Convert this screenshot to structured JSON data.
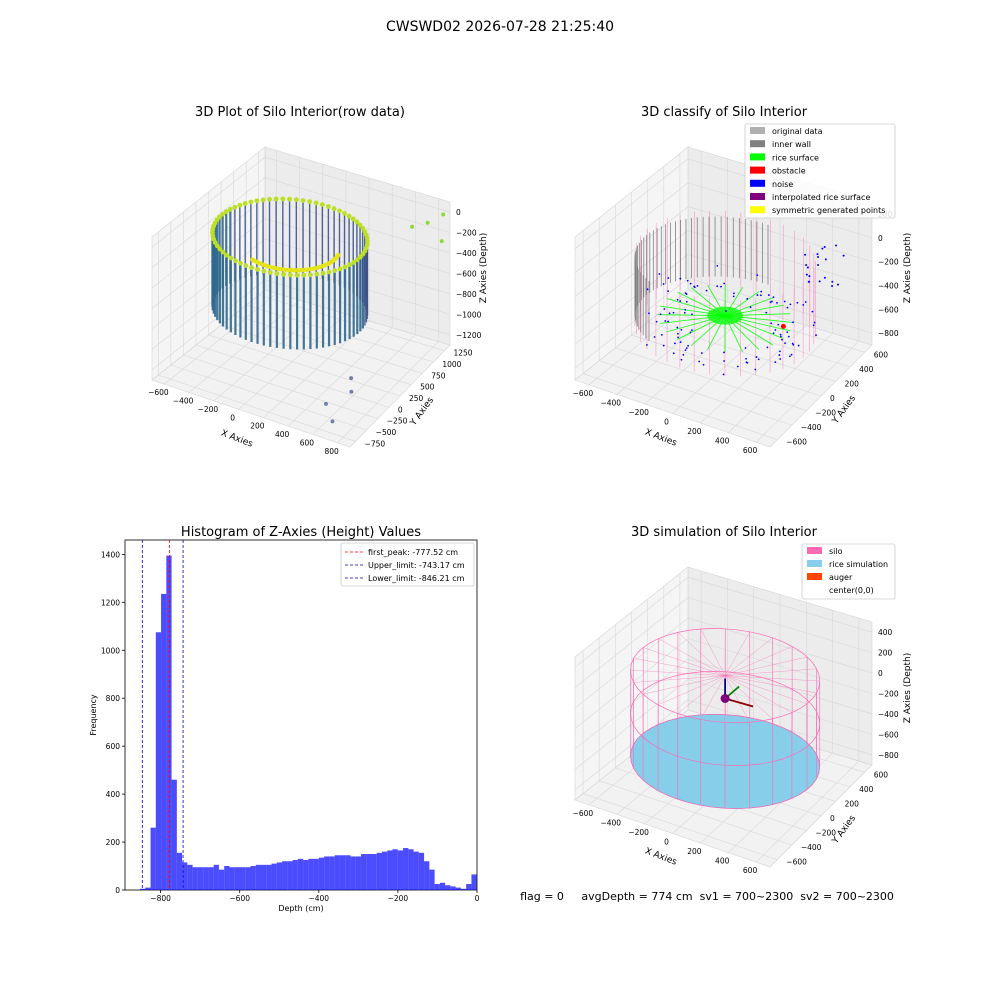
{
  "figure": {
    "suptitle": "CWSWD02 2026-07-28 21:25:40",
    "status_line": "flag = 0     avgDepth = 774 cm  sv1 = 700~2300  sv2 = 700~2300"
  },
  "colors": {
    "hist_bar": "#0000ff",
    "first_peak_line": "#ff0000",
    "limit_line": "#0000cc",
    "legend_original": "#b0b0b0",
    "legend_inner_wall": "#808080",
    "legend_rice_surface": "#00ff00",
    "legend_obstacle": "#ff0000",
    "legend_noise": "#0000ff",
    "legend_interpolated": "#800080",
    "legend_symmetric": "#ffff00",
    "silo": "#ff69b4",
    "rice_simulation": "#87ceeb",
    "auger": "#ff4500"
  },
  "chart_data": [
    {
      "type": "scatter",
      "projection": "3d",
      "title": "3D Plot of Silo Interior(row data)",
      "xlabel": "X Axies",
      "ylabel": "Y Axies",
      "zlabel": "Z Axies (Depth)",
      "xticks": [
        "−600",
        "−400",
        "−200",
        "0",
        "200",
        "400",
        "600",
        "800"
      ],
      "yticks": [
        "−750",
        "−500",
        "−250",
        "0",
        "250",
        "500",
        "750",
        "1000",
        "1250"
      ],
      "zticks": [
        "0",
        "−200",
        "−400",
        "−600",
        "−800",
        "−1000",
        "−1200"
      ],
      "colormap": "viridis"
    },
    {
      "type": "scatter",
      "projection": "3d",
      "title": "3D classify of Silo Interior",
      "xlabel": "X Axies",
      "ylabel": "Y Axies",
      "zlabel": "Z Axies (Depth)",
      "xticks": [
        "−600",
        "−400",
        "−200",
        "0",
        "200",
        "400",
        "600"
      ],
      "yticks": [
        "−600",
        "−400",
        "−200",
        "0",
        "200",
        "400",
        "600"
      ],
      "zticks": [
        "200",
        "0",
        "−200",
        "−400",
        "−600",
        "−800"
      ],
      "legend": [
        "original data",
        "inner wall",
        "rice surface",
        "obstacle",
        "noise",
        "interpolated rice surface",
        "symmetric generated points"
      ],
      "legend_loc": "upper right"
    },
    {
      "type": "bar",
      "title": "Histogram of Z-Axies (Height) Values",
      "xlabel": "Depth (cm)",
      "ylabel": "Frequency",
      "xlim": [
        -890,
        0
      ],
      "ylim": [
        0,
        1460
      ],
      "xticks": [
        "−800",
        "−600",
        "−400",
        "−200",
        "0"
      ],
      "yticks": [
        "0",
        "200",
        "400",
        "600",
        "800",
        "1000",
        "1200",
        "1400"
      ],
      "bin_width": 13.3,
      "bins_start": [
        -852,
        -838.7,
        -825.4,
        -812.1,
        -798.8,
        -785.5,
        -772.2,
        -758.9,
        -745.6,
        -732.3,
        -719,
        -705.7,
        -692.4,
        -679.1,
        -665.8,
        -652.5,
        -639.2,
        -625.9,
        -612.6,
        -599.3,
        -586,
        -572.7,
        -559.4,
        -546.1,
        -532.8,
        -519.5,
        -506.2,
        -492.9,
        -479.6,
        -466.3,
        -453,
        -439.7,
        -426.4,
        -413.1,
        -399.8,
        -386.5,
        -373.2,
        -359.9,
        -346.6,
        -333.3,
        -320,
        -306.7,
        -293.4,
        -280.1,
        -266.8,
        -253.5,
        -240.2,
        -226.9,
        -213.6,
        -200.3,
        -187,
        -173.7,
        -160.4,
        -147.1,
        -133.8,
        -120.5,
        -107.2,
        -93.9,
        -80.6,
        -67.3,
        -54,
        -40.7,
        -27.4,
        -14.1
      ],
      "values": [
        5,
        10,
        260,
        1075,
        1235,
        1395,
        460,
        155,
        115,
        105,
        95,
        95,
        95,
        95,
        105,
        85,
        100,
        95,
        95,
        95,
        95,
        100,
        105,
        105,
        105,
        110,
        115,
        120,
        120,
        125,
        130,
        125,
        130,
        130,
        135,
        140,
        140,
        145,
        145,
        145,
        140,
        140,
        150,
        150,
        150,
        155,
        160,
        165,
        170,
        165,
        175,
        170,
        160,
        155,
        120,
        85,
        25,
        30,
        20,
        15,
        10,
        5,
        25,
        65
      ],
      "vlines": [
        {
          "label": "first_peak: -777.52 cm",
          "x": -777.52,
          "style": "red-dashed"
        },
        {
          "label": "Upper_limit: -743.17 cm",
          "x": -743.17,
          "style": "blue-dashed"
        },
        {
          "label": "Lower_limit: -846.21 cm",
          "x": -846.21,
          "style": "blue-dashed"
        }
      ],
      "legend_loc": "upper right"
    },
    {
      "type": "scatter",
      "projection": "3d",
      "title": "3D simulation of Silo Interior",
      "xlabel": "X Axies",
      "ylabel": "Y Axies",
      "zlabel": "Z Axies (Depth)",
      "xticks": [
        "−600",
        "−400",
        "−200",
        "0",
        "200",
        "400",
        "600"
      ],
      "yticks": [
        "−600",
        "−400",
        "−200",
        "0",
        "200",
        "400",
        "600"
      ],
      "zticks": [
        "400",
        "200",
        "0",
        "−200",
        "−400",
        "−600",
        "−800"
      ],
      "legend": [
        "silo",
        "rice simulation",
        "auger",
        "center(0,0)"
      ],
      "legend_loc": "upper right"
    }
  ]
}
